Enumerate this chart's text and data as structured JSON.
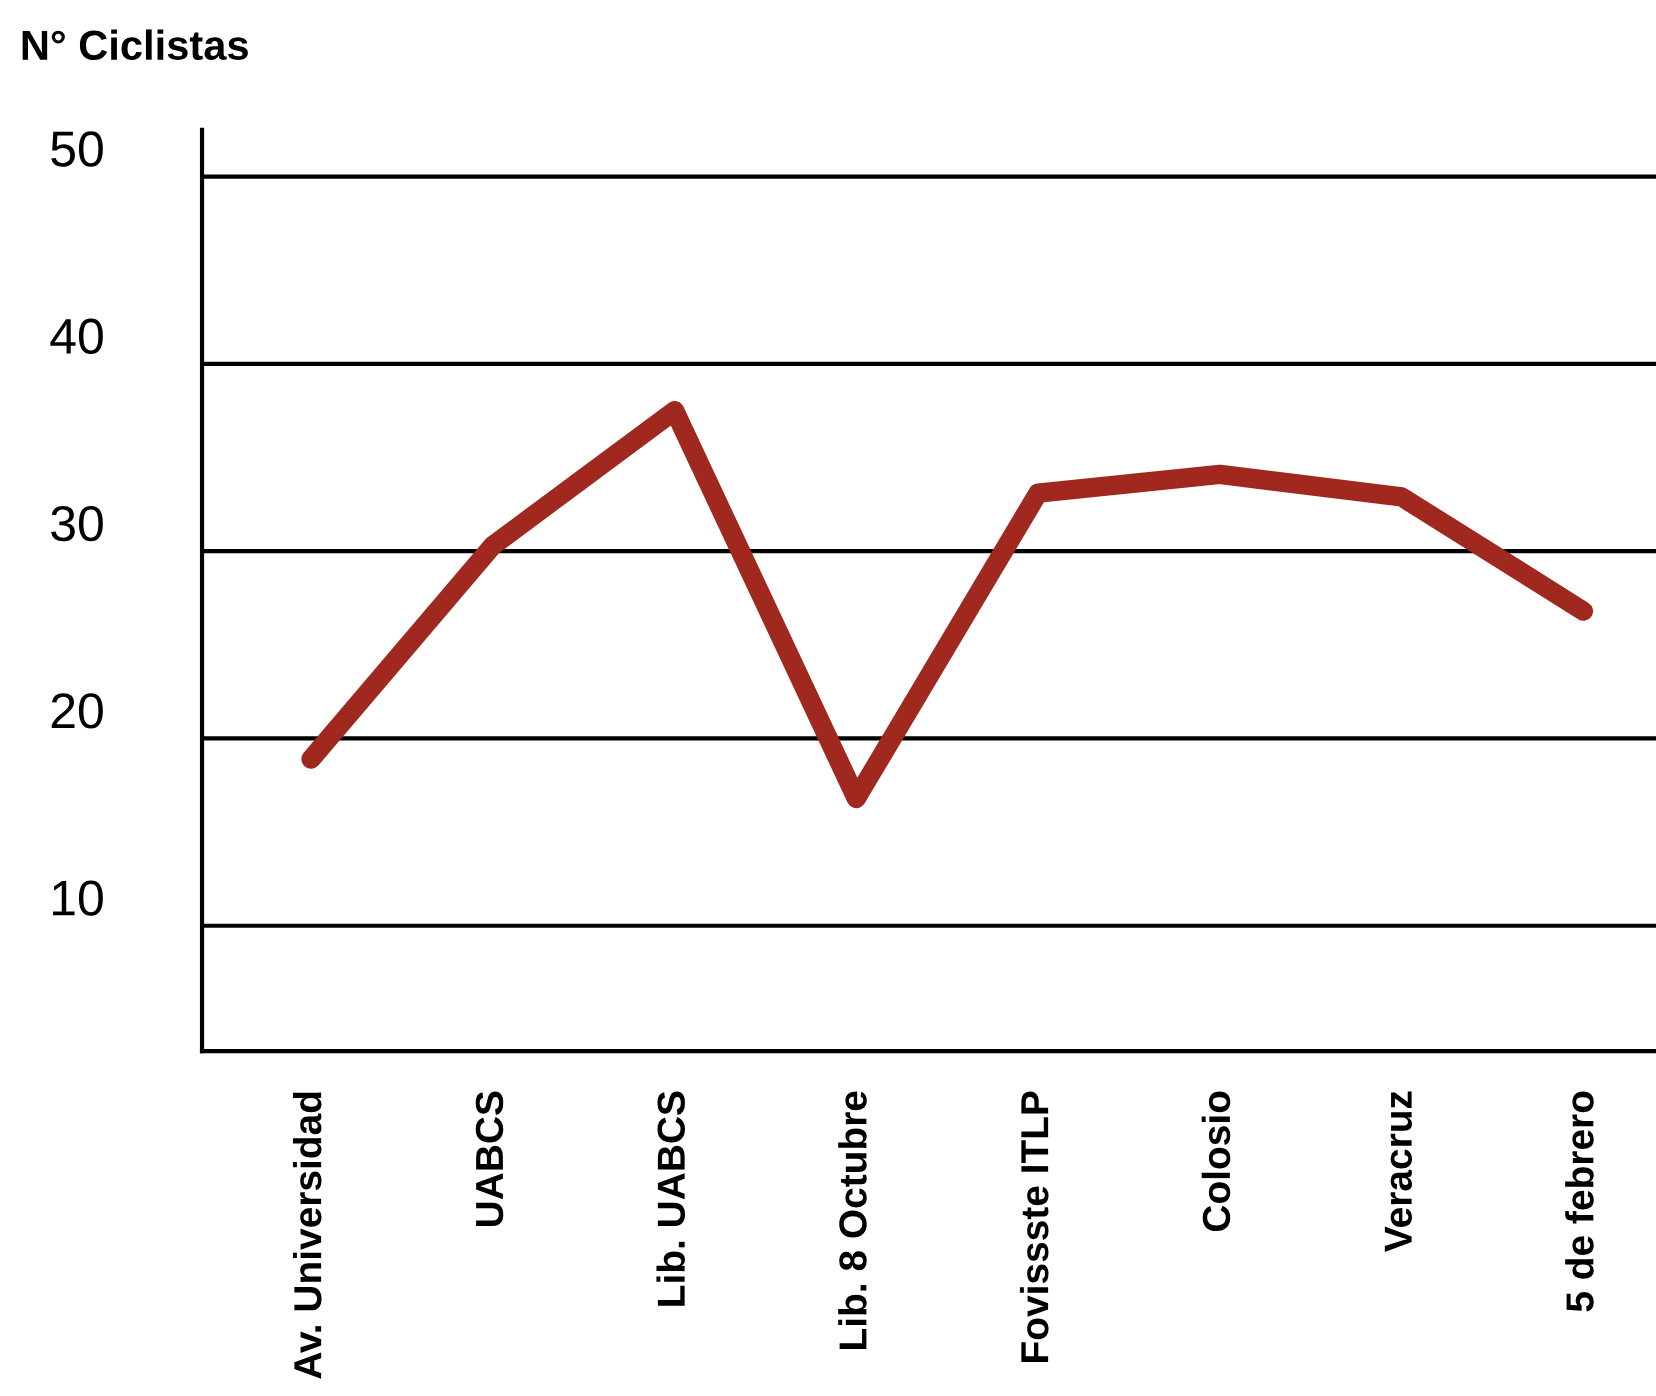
{
  "chart_data": {
    "type": "line",
    "ylabel": "N° Ciclistas",
    "categories": [
      "Av. Universidad",
      "UABCS",
      "Lib. UABCS",
      "Lib. 8 Octubre",
      "Fovissste ITLP",
      "Colosio",
      "Veracruz",
      "5 de febrero"
    ],
    "series": [
      {
        "color": "#a1281e",
        "values": [
          18.9,
          30.3,
          37.5,
          16.8,
          33.1,
          34.1,
          32.9,
          26.8
        ]
      }
    ],
    "ylim": [
      3.3,
      52.5
    ],
    "yticks": [
      10,
      20,
      30,
      40,
      50
    ],
    "grid": "y",
    "marker": "none",
    "line_style": "solid",
    "legend": false
  }
}
